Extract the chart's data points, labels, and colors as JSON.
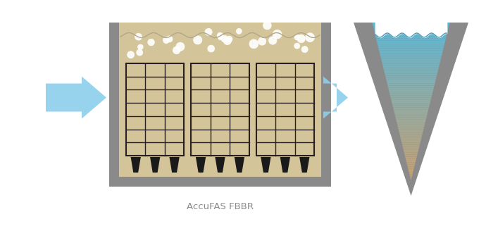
{
  "bg_color": "#ffffff",
  "reactor_color": "#d4c49a",
  "wall_color": "#8a8a8a",
  "grid_color": "#2a2020",
  "grid_bg": "#d4c49a",
  "nozzle_color": "#1a1a1a",
  "arrow_color_light": "#a8d8f0",
  "arrow_color_dark": "#5aafe0",
  "label_text": "AccuFAS FBBR",
  "label_color": "#8a8a8a",
  "label_fontsize": 9.5,
  "v_wall_color": "#8a8a8a",
  "bubble_color": "#ffffff",
  "num_grids": 3,
  "grid_rows": 7,
  "grid_cols": 3
}
